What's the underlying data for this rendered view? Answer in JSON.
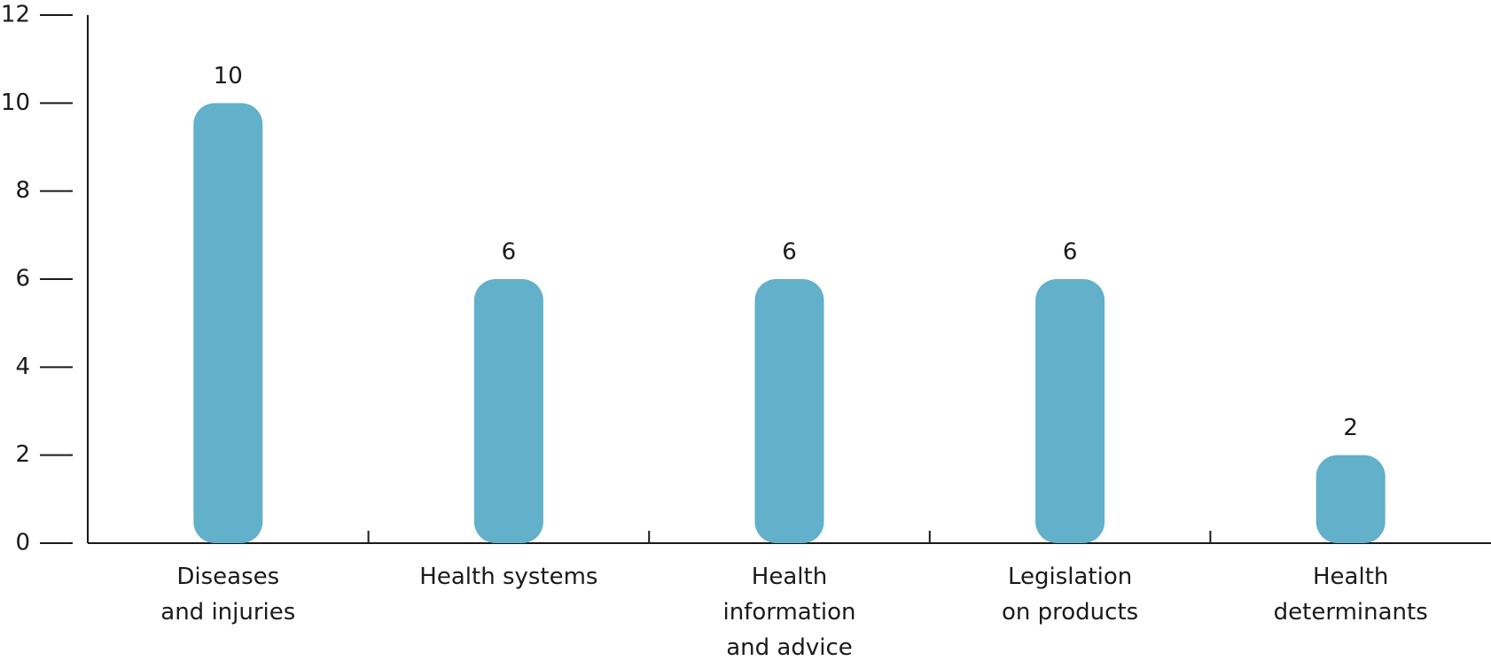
{
  "chart_data": {
    "type": "bar",
    "categories": [
      "Diseases\nand injuries",
      "Health systems",
      "Health\ninformation\nand advice",
      "Legislation\non products",
      "Health\ndeterminants"
    ],
    "values": [
      10,
      6,
      6,
      6,
      2
    ],
    "color": "#62b0c9",
    "ylim": [
      0,
      12
    ],
    "yticks": [
      0,
      2,
      4,
      6,
      8,
      10,
      12
    ],
    "value_labels_shown": true
  }
}
